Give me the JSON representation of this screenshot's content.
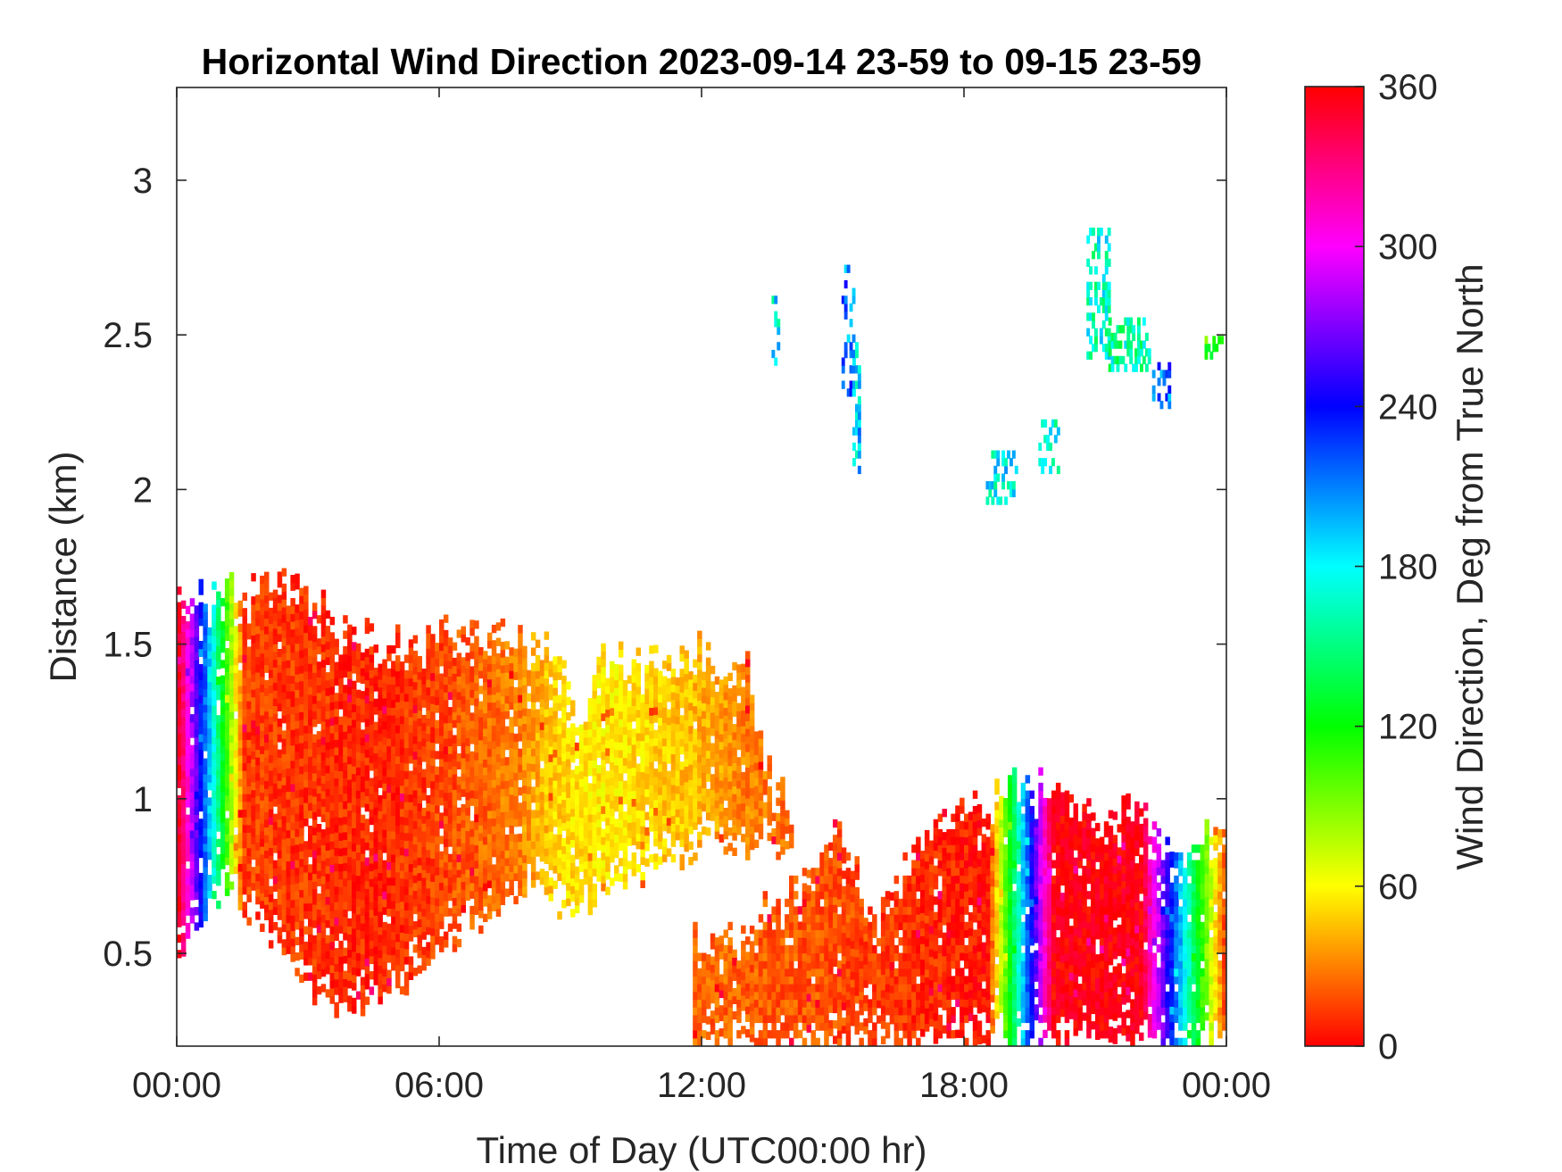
{
  "chart_data": {
    "type": "heatmap",
    "title": "Horizontal Wind Direction 2023-09-14 23-59 to 09-15 23-59",
    "xlabel": "Time of Day (UTC00:00 hr)",
    "ylabel": "Distance (km)",
    "x_unit": "hours since 00:00 UTC",
    "xlim": [
      0,
      24
    ],
    "ylim": [
      0.2,
      3.3
    ],
    "x_ticks": [
      {
        "value": 0,
        "label": "00:00"
      },
      {
        "value": 6,
        "label": "06:00"
      },
      {
        "value": 12,
        "label": "12:00"
      },
      {
        "value": 18,
        "label": "18:00"
      },
      {
        "value": 24,
        "label": "00:00"
      }
    ],
    "y_ticks": [
      {
        "value": 0.5,
        "label": "0.5"
      },
      {
        "value": 1,
        "label": "1"
      },
      {
        "value": 1.5,
        "label": "1.5"
      },
      {
        "value": 2,
        "label": "2"
      },
      {
        "value": 2.5,
        "label": "2.5"
      },
      {
        "value": 3,
        "label": "3"
      }
    ],
    "colorbar": {
      "label": "Wind Direction, Deg from True North",
      "range": [
        0,
        360
      ],
      "colormap": "hsv",
      "ticks": [
        {
          "value": 0,
          "label": "0"
        },
        {
          "value": 60,
          "label": "60"
        },
        {
          "value": 120,
          "label": "120"
        },
        {
          "value": 180,
          "label": "180"
        },
        {
          "value": 240,
          "label": "240"
        },
        {
          "value": 300,
          "label": "300"
        },
        {
          "value": 360,
          "label": "360"
        }
      ]
    },
    "time_bin_hours": 0.1,
    "height_bin_km": 0.025,
    "regions": [
      {
        "name": "early low layer",
        "x_range": [
          0,
          7.9
        ],
        "bottom": [
          [
            0,
            0.5
          ],
          [
            1,
            0.7
          ],
          [
            2,
            0.55
          ],
          [
            3.5,
            0.3
          ],
          [
            5,
            0.35
          ],
          [
            6,
            0.5
          ],
          [
            7,
            0.6
          ],
          [
            7.9,
            0.72
          ]
        ],
        "top": [
          [
            0,
            1.66
          ],
          [
            1.5,
            1.67
          ],
          [
            2.8,
            1.7
          ],
          [
            3.8,
            1.52
          ],
          [
            5,
            1.5
          ],
          [
            6.5,
            1.55
          ],
          [
            7.9,
            1.52
          ]
        ],
        "direction_deg": [
          [
            0,
            352
          ],
          [
            1.5,
            14
          ],
          [
            3,
            12
          ],
          [
            4.5,
            8
          ],
          [
            6,
            16
          ],
          [
            7.5,
            28
          ]
        ]
      },
      {
        "name": "morning yellow layer",
        "x_range": [
          7.9,
          14
        ],
        "bottom": [
          [
            7.9,
            0.72
          ],
          [
            9,
            0.62
          ],
          [
            10,
            0.7
          ],
          [
            11,
            0.78
          ],
          [
            12,
            0.82
          ],
          [
            13,
            0.82
          ],
          [
            14,
            0.85
          ]
        ],
        "top": [
          [
            7.9,
            1.52
          ],
          [
            8.8,
            1.48
          ],
          [
            9.2,
            1.2
          ],
          [
            9.6,
            1.42
          ],
          [
            10.5,
            1.45
          ],
          [
            11.8,
            1.48
          ],
          [
            13,
            1.4
          ],
          [
            13.4,
            1.1
          ],
          [
            14,
            0.95
          ]
        ],
        "direction_deg": [
          [
            7.9,
            34
          ],
          [
            8.6,
            50
          ],
          [
            9.6,
            56
          ],
          [
            10.6,
            52
          ],
          [
            11.8,
            44
          ],
          [
            13,
            30
          ],
          [
            14,
            24
          ]
        ]
      },
      {
        "name": "afternoon surface layer",
        "x_range": [
          11.8,
          24
        ],
        "bottom": [
          [
            11.8,
            0.2
          ],
          [
            24,
            0.2
          ]
        ],
        "top": [
          [
            11.8,
            0.55
          ],
          [
            13,
            0.6
          ],
          [
            14.3,
            0.72
          ],
          [
            15,
            0.95
          ],
          [
            16,
            0.6
          ],
          [
            17,
            0.9
          ],
          [
            18,
            0.95
          ],
          [
            19.5,
            1.05
          ],
          [
            21,
            0.95
          ],
          [
            22,
            0.95
          ],
          [
            23,
            0.8
          ],
          [
            24,
            0.95
          ]
        ],
        "direction_deg": [
          [
            11.8,
            24
          ],
          [
            15,
            18
          ],
          [
            17,
            10
          ],
          [
            18.5,
            4
          ],
          [
            20,
            358
          ],
          [
            22,
            356
          ],
          [
            24,
            2
          ]
        ]
      }
    ],
    "sparse_returns": [
      {
        "x": [
          13.6,
          13.75
        ],
        "y": [
          2.4,
          2.62
        ],
        "direction_deg": 180
      },
      {
        "x": [
          15.2,
          15.45
        ],
        "y": [
          2.3,
          2.72
        ],
        "direction_deg": 215
      },
      {
        "x": [
          15.45,
          15.6
        ],
        "y": [
          2.05,
          2.45
        ],
        "direction_deg": 190
      },
      {
        "x": [
          18.5,
          19.2
        ],
        "y": [
          1.95,
          2.12
        ],
        "direction_deg": 178
      },
      {
        "x": [
          19.7,
          20.2
        ],
        "y": [
          2.05,
          2.2
        ],
        "direction_deg": 175
      },
      {
        "x": [
          20.8,
          21.3
        ],
        "y": [
          2.42,
          2.84
        ],
        "direction_deg": 168
      },
      {
        "x": [
          21.3,
          22.2
        ],
        "y": [
          2.38,
          2.55
        ],
        "direction_deg": 160
      },
      {
        "x": [
          22.3,
          22.7
        ],
        "y": [
          2.26,
          2.4
        ],
        "direction_deg": 220
      },
      {
        "x": [
          23.5,
          23.9
        ],
        "y": [
          2.42,
          2.48
        ],
        "direction_deg": 110
      }
    ]
  }
}
